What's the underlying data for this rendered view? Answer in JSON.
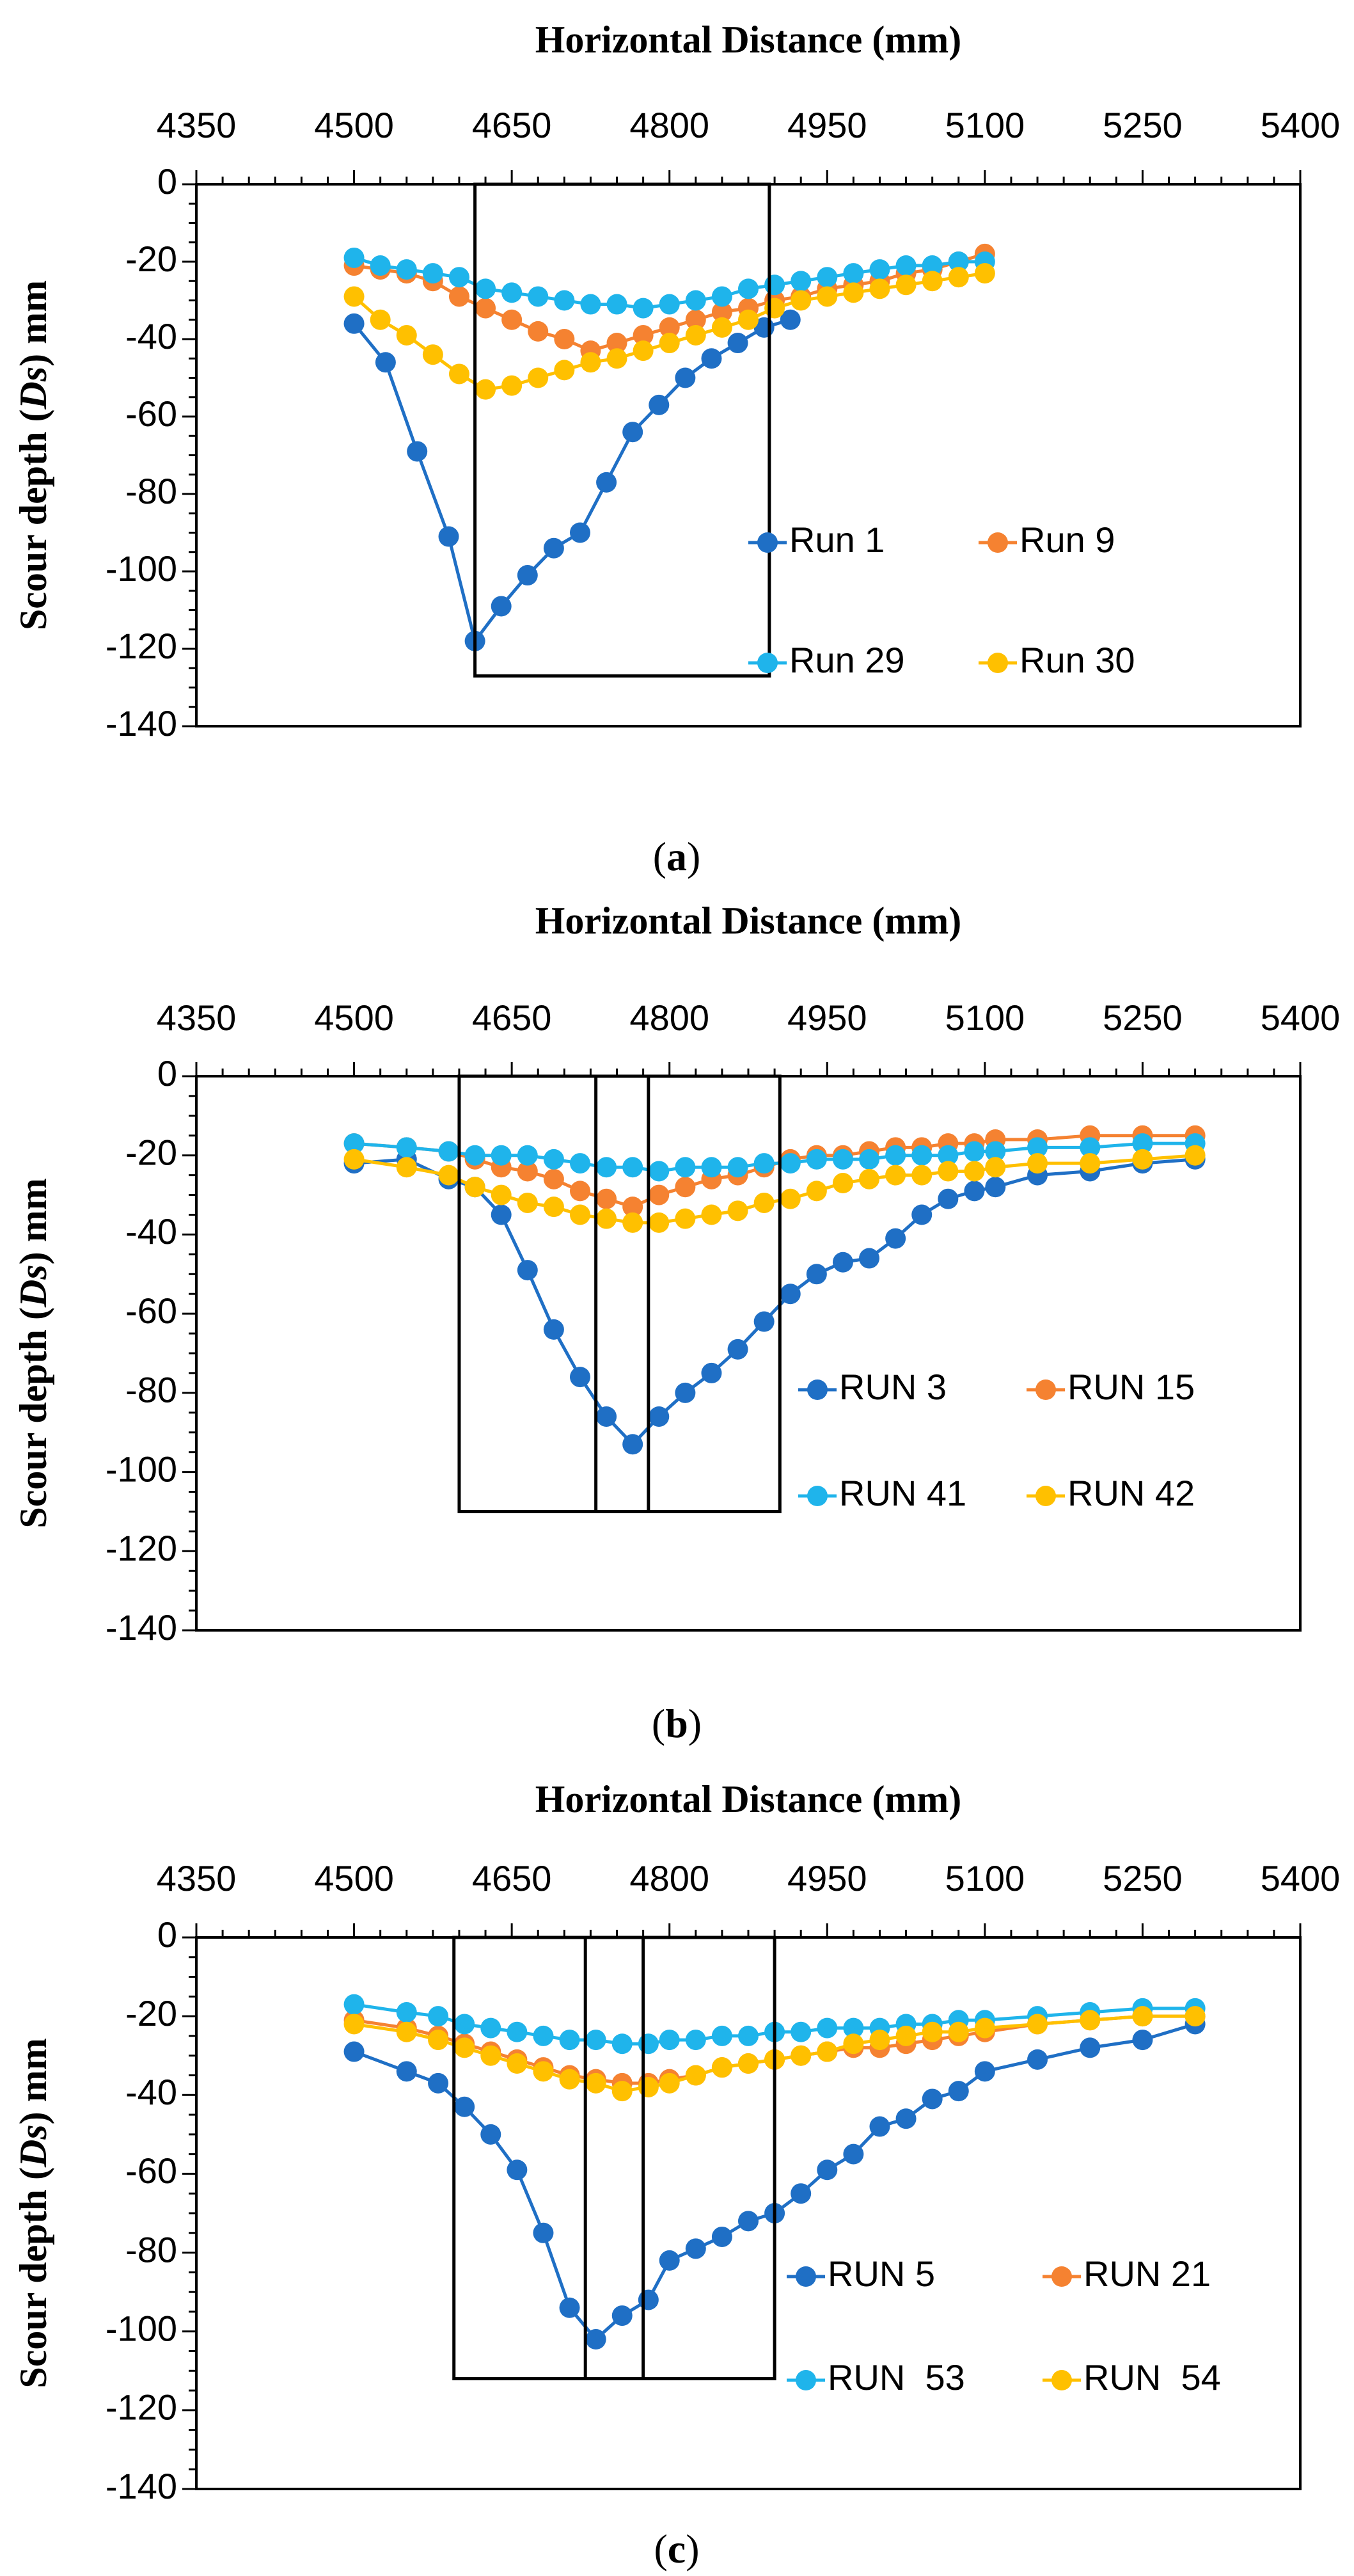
{
  "colors": {
    "blue": "#1F6FC5",
    "orange": "#F58231",
    "sky": "#1FB4EB",
    "yellow": "#FFC000"
  },
  "chart_data": [
    {
      "type": "line",
      "label_prefix": "(",
      "label_letter": "a",
      "label_suffix": ")",
      "xlabel": "Horizontal Distance (mm)",
      "ylabel_parts": [
        "Scour depth (",
        "Ds",
        ") mm"
      ],
      "xlim": [
        4350,
        5400
      ],
      "ylim": [
        -140,
        0
      ],
      "xticks": [
        4350,
        4500,
        4650,
        4800,
        4950,
        5100,
        5250,
        5400
      ],
      "yticks": [
        0,
        -20,
        -40,
        -60,
        -80,
        -100,
        -120,
        -140
      ],
      "x_axis_position": "top",
      "legend_position": "center-right",
      "boxes": [
        {
          "x": [
            4615,
            4895
          ],
          "y": [
            0,
            -127
          ]
        }
      ],
      "box_dividers": [],
      "series": [
        {
          "name": "Run 1",
          "color": "#1F6FC5",
          "x": [
            4500,
            4530,
            4560,
            4590,
            4615,
            4640,
            4665,
            4690,
            4715,
            4740,
            4765,
            4790,
            4815,
            4840,
            4865,
            4890,
            4915
          ],
          "y": [
            -36,
            -46,
            -69,
            -91,
            -118,
            -109,
            -101,
            -94,
            -90,
            -77,
            -64,
            -57,
            -50,
            -45,
            -41,
            -37,
            -35
          ]
        },
        {
          "name": "Run 9",
          "color": "#F58231",
          "x": [
            4500,
            4525,
            4550,
            4575,
            4600,
            4625,
            4650,
            4675,
            4700,
            4725,
            4750,
            4775,
            4800,
            4825,
            4850,
            4875,
            4900,
            4925,
            4950,
            4975,
            5000,
            5025,
            5050,
            5075,
            5100
          ],
          "y": [
            -21,
            -22,
            -23,
            -25,
            -29,
            -32,
            -35,
            -38,
            -40,
            -43,
            -41,
            -39,
            -37,
            -35,
            -33,
            -32,
            -30,
            -29,
            -27,
            -26,
            -25,
            -23,
            -22,
            -20,
            -18
          ]
        },
        {
          "name": "Run 29",
          "color": "#1FB4EB",
          "x": [
            4500,
            4525,
            4550,
            4575,
            4600,
            4625,
            4650,
            4675,
            4700,
            4725,
            4750,
            4775,
            4800,
            4825,
            4850,
            4875,
            4900,
            4925,
            4950,
            4975,
            5000,
            5025,
            5050,
            5075,
            5100
          ],
          "y": [
            -19,
            -21,
            -22,
            -23,
            -24,
            -27,
            -28,
            -29,
            -30,
            -31,
            -31,
            -32,
            -31,
            -30,
            -29,
            -27,
            -26,
            -25,
            -24,
            -23,
            -22,
            -21,
            -21,
            -20,
            -20
          ]
        },
        {
          "name": "Run 30",
          "color": "#FFC000",
          "x": [
            4500,
            4525,
            4550,
            4575,
            4600,
            4625,
            4650,
            4675,
            4700,
            4725,
            4750,
            4775,
            4800,
            4825,
            4850,
            4875,
            4900,
            4925,
            4950,
            4975,
            5000,
            5025,
            5050,
            5075,
            5100
          ],
          "y": [
            -29,
            -35,
            -39,
            -44,
            -49,
            -53,
            -52,
            -50,
            -48,
            -46,
            -45,
            -43,
            -41,
            -39,
            -37,
            -35,
            -32,
            -30,
            -29,
            -28,
            -27,
            -26,
            -25,
            -24,
            -23
          ]
        }
      ],
      "legend_rows": [
        [
          0,
          1
        ],
        [
          2,
          3
        ]
      ]
    },
    {
      "type": "line",
      "label_prefix": "(",
      "label_letter": "b",
      "label_suffix": ")",
      "xlabel": "Horizontal Distance (mm)",
      "ylabel_parts": [
        "Scour depth (",
        "Ds",
        ") mm"
      ],
      "xlim": [
        4350,
        5400
      ],
      "ylim": [
        -140,
        0
      ],
      "xticks": [
        4350,
        4500,
        4650,
        4800,
        4950,
        5100,
        5250,
        5400
      ],
      "yticks": [
        0,
        -20,
        -40,
        -60,
        -80,
        -100,
        -120,
        -140
      ],
      "x_axis_position": "top",
      "legend_position": "center-right",
      "boxes": [
        {
          "x": [
            4600,
            4905
          ],
          "y": [
            0,
            -110
          ]
        }
      ],
      "box_dividers": [
        4730,
        4780
      ],
      "series": [
        {
          "name": "RUN 3",
          "color": "#1F6FC5",
          "x": [
            4500,
            4550,
            4590,
            4615,
            4640,
            4665,
            4690,
            4715,
            4740,
            4765,
            4790,
            4815,
            4840,
            4865,
            4890,
            4915,
            4940,
            4965,
            4990,
            5015,
            5040,
            5065,
            5090,
            5110,
            5150,
            5200,
            5250,
            5300
          ],
          "y": [
            -22,
            -21,
            -26,
            -28,
            -35,
            -49,
            -64,
            -76,
            -86,
            -93,
            -86,
            -80,
            -75,
            -69,
            -62,
            -55,
            -50,
            -47,
            -46,
            -41,
            -35,
            -31,
            -29,
            -28,
            -25,
            -24,
            -22,
            -21
          ]
        },
        {
          "name": "RUN 15",
          "color": "#F58231",
          "x": [
            4500,
            4550,
            4590,
            4615,
            4640,
            4665,
            4690,
            4715,
            4740,
            4765,
            4790,
            4815,
            4840,
            4865,
            4890,
            4915,
            4940,
            4965,
            4990,
            5015,
            5040,
            5065,
            5090,
            5110,
            5150,
            5200,
            5250,
            5300
          ],
          "y": [
            -17,
            -18,
            -19,
            -21,
            -23,
            -24,
            -26,
            -29,
            -31,
            -33,
            -30,
            -28,
            -26,
            -25,
            -23,
            -21,
            -20,
            -20,
            -19,
            -18,
            -18,
            -17,
            -17,
            -16,
            -16,
            -15,
            -15,
            -15
          ]
        },
        {
          "name": "RUN 41",
          "color": "#1FB4EB",
          "x": [
            4500,
            4550,
            4590,
            4615,
            4640,
            4665,
            4690,
            4715,
            4740,
            4765,
            4790,
            4815,
            4840,
            4865,
            4890,
            4915,
            4940,
            4965,
            4990,
            5015,
            5040,
            5065,
            5090,
            5110,
            5150,
            5200,
            5250,
            5300
          ],
          "y": [
            -17,
            -18,
            -19,
            -20,
            -20,
            -20,
            -21,
            -22,
            -23,
            -23,
            -24,
            -23,
            -23,
            -23,
            -22,
            -22,
            -21,
            -21,
            -21,
            -20,
            -20,
            -20,
            -19,
            -19,
            -18,
            -18,
            -17,
            -17
          ]
        },
        {
          "name": "RUN 42",
          "color": "#FFC000",
          "x": [
            4500,
            4550,
            4590,
            4615,
            4640,
            4665,
            4690,
            4715,
            4740,
            4765,
            4790,
            4815,
            4840,
            4865,
            4890,
            4915,
            4940,
            4965,
            4990,
            5015,
            5040,
            5065,
            5090,
            5110,
            5150,
            5200,
            5250,
            5300
          ],
          "y": [
            -21,
            -23,
            -25,
            -28,
            -30,
            -32,
            -33,
            -35,
            -36,
            -37,
            -37,
            -36,
            -35,
            -34,
            -32,
            -31,
            -29,
            -27,
            -26,
            -25,
            -25,
            -24,
            -24,
            -23,
            -22,
            -22,
            -21,
            -20
          ]
        }
      ],
      "legend_rows": [
        [
          0,
          1
        ],
        [
          2,
          3
        ]
      ]
    },
    {
      "type": "line",
      "label_prefix": "(",
      "label_letter": "c",
      "label_suffix": ")",
      "xlabel": "Horizontal Distance (mm)",
      "ylabel_parts": [
        "Scour depth (",
        "Ds",
        ") mm"
      ],
      "xlim": [
        4350,
        5400
      ],
      "ylim": [
        -140,
        0
      ],
      "xticks": [
        4350,
        4500,
        4650,
        4800,
        4950,
        5100,
        5250,
        5400
      ],
      "yticks": [
        0,
        -20,
        -40,
        -60,
        -80,
        -100,
        -120,
        -140
      ],
      "x_axis_position": "top",
      "legend_position": "center-right",
      "boxes": [
        {
          "x": [
            4595,
            4900
          ],
          "y": [
            0,
            -112
          ]
        }
      ],
      "box_dividers": [
        4720,
        4775
      ],
      "series": [
        {
          "name": "RUN 5",
          "color": "#1F6FC5",
          "x": [
            4500,
            4550,
            4580,
            4605,
            4630,
            4655,
            4680,
            4705,
            4730,
            4755,
            4780,
            4800,
            4825,
            4850,
            4875,
            4900,
            4925,
            4950,
            4975,
            5000,
            5025,
            5050,
            5075,
            5100,
            5150,
            5200,
            5250,
            5300
          ],
          "y": [
            -29,
            -34,
            -37,
            -43,
            -50,
            -59,
            -75,
            -94,
            -102,
            -96,
            -92,
            -82,
            -79,
            -76,
            -72,
            -70,
            -65,
            -59,
            -55,
            -48,
            -46,
            -41,
            -39,
            -34,
            -31,
            -28,
            -26,
            -22
          ]
        },
        {
          "name": "RUN 21",
          "color": "#F58231",
          "x": [
            4500,
            4550,
            4580,
            4605,
            4630,
            4655,
            4680,
            4705,
            4730,
            4755,
            4780,
            4800,
            4825,
            4850,
            4875,
            4900,
            4925,
            4950,
            4975,
            5000,
            5025,
            5050,
            5075,
            5100,
            5150,
            5200,
            5250,
            5300
          ],
          "y": [
            -21,
            -23,
            -25,
            -27,
            -29,
            -31,
            -33,
            -35,
            -36,
            -37,
            -37,
            -36,
            -35,
            -33,
            -32,
            -31,
            -30,
            -29,
            -28,
            -28,
            -27,
            -26,
            -25,
            -24,
            -22,
            -21,
            -20,
            -20
          ]
        },
        {
          "name": "RUN  53",
          "color": "#1FB4EB",
          "x": [
            4500,
            4550,
            4580,
            4605,
            4630,
            4655,
            4680,
            4705,
            4730,
            4755,
            4780,
            4800,
            4825,
            4850,
            4875,
            4900,
            4925,
            4950,
            4975,
            5000,
            5025,
            5050,
            5075,
            5100,
            5150,
            5200,
            5250,
            5300
          ],
          "y": [
            -17,
            -19,
            -20,
            -22,
            -23,
            -24,
            -25,
            -26,
            -26,
            -27,
            -27,
            -26,
            -26,
            -25,
            -25,
            -24,
            -24,
            -23,
            -23,
            -23,
            -22,
            -22,
            -21,
            -21,
            -20,
            -19,
            -18,
            -18
          ]
        },
        {
          "name": "RUN  54",
          "color": "#FFC000",
          "x": [
            4500,
            4550,
            4580,
            4605,
            4630,
            4655,
            4680,
            4705,
            4730,
            4755,
            4780,
            4800,
            4825,
            4850,
            4875,
            4900,
            4925,
            4950,
            4975,
            5000,
            5025,
            5050,
            5075,
            5100,
            5150,
            5200,
            5250,
            5300
          ],
          "y": [
            -22,
            -24,
            -26,
            -28,
            -30,
            -32,
            -34,
            -36,
            -37,
            -39,
            -38,
            -37,
            -35,
            -33,
            -32,
            -31,
            -30,
            -29,
            -27,
            -26,
            -25,
            -24,
            -24,
            -23,
            -22,
            -21,
            -20,
            -20
          ]
        }
      ],
      "legend_rows": [
        [
          0,
          1
        ],
        [
          2,
          3
        ]
      ]
    }
  ]
}
